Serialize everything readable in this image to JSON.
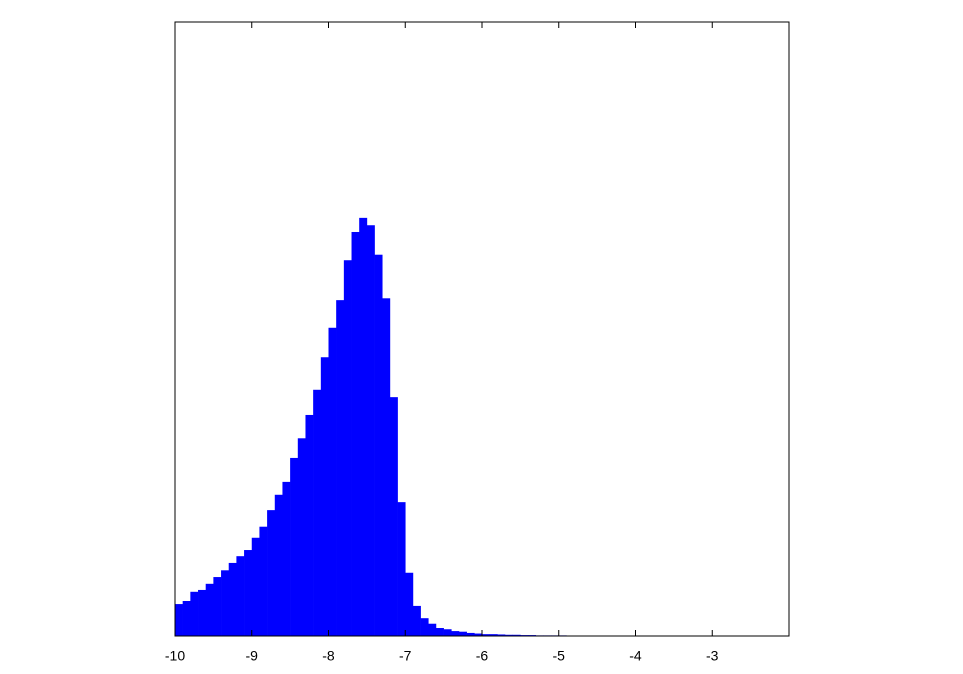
{
  "chart_data": {
    "type": "histogram",
    "bins": [
      -10,
      -9.9,
      -9.8,
      -9.7,
      -9.6,
      -9.5,
      -9.4,
      -9.3,
      -9.2,
      -9.1,
      -9,
      -8.9,
      -8.8,
      -8.7,
      -8.6,
      -8.5,
      -8.4,
      -8.3,
      -8.2,
      -8.1,
      -8,
      -7.9,
      -7.8,
      -7.7,
      -7.6,
      -7.5,
      -7.4,
      -7.3,
      -7.2,
      -7.1,
      -7,
      -6.9,
      -6.8,
      -6.7,
      -6.6,
      -6.5,
      -6.4,
      -6.3,
      -6.2,
      -6.1,
      -6,
      -5.9,
      -5.8,
      -5.7,
      -5.6,
      -5.5,
      -5.4,
      -5.3,
      -5.2,
      -5.1,
      -5,
      -4.9,
      -4.8,
      -4.7,
      -4.6,
      -4.5,
      -4.4,
      -4.3,
      -4.2,
      -4.1,
      -4,
      -3.9,
      -3.8,
      -3.7,
      -3.6,
      -3.5,
      -3.4
    ],
    "values": [
      5.2,
      5.7,
      7.2,
      7.5,
      8.5,
      9.6,
      10.7,
      11.9,
      13.0,
      14.0,
      16.0,
      17.8,
      20.5,
      23.0,
      25.1,
      29.0,
      32.2,
      36.0,
      40.1,
      45.4,
      50.2,
      54.7,
      61.2,
      65.8,
      68.1,
      66.9,
      62.1,
      55.0,
      38.9,
      21.8,
      10.3,
      4.9,
      2.9,
      2.0,
      1.3,
      1.1,
      0.8,
      0.7,
      0.5,
      0.4,
      0.3,
      0.3,
      0.25,
      0.2,
      0.2,
      0.15,
      0.15,
      0.1,
      0.1,
      0.1,
      0.1,
      0.08,
      0.08,
      0.06,
      0.06,
      0.05,
      0.05,
      0.04,
      0.04,
      0.03,
      0.03,
      0.02,
      0.02,
      0.02,
      0.01,
      0.01
    ],
    "color": "#0000ff",
    "xlim": [
      -10,
      -2
    ],
    "xticks": [
      -10,
      -9,
      -8,
      -7,
      -6,
      -5,
      -4,
      -3
    ],
    "ylim": [
      0,
      100
    ],
    "grid": false
  }
}
